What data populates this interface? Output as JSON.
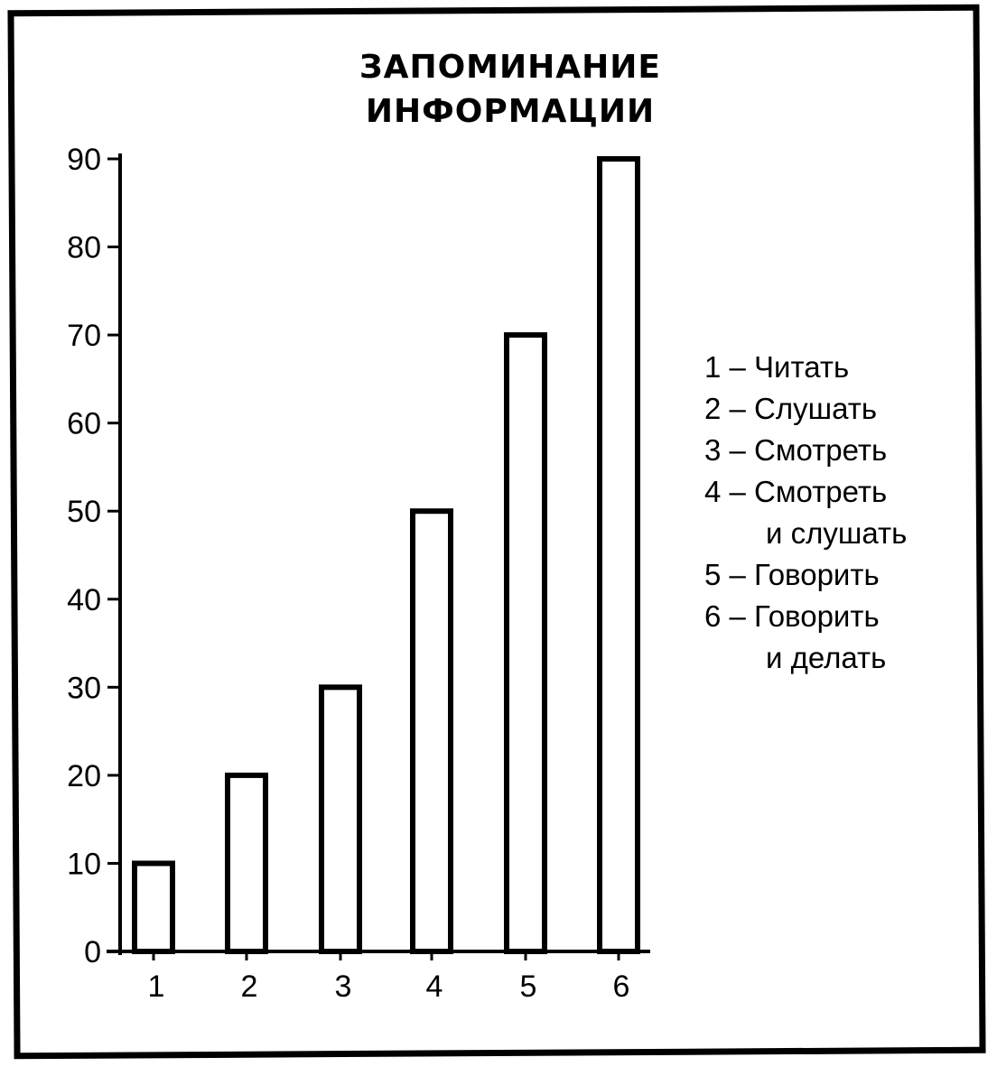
{
  "chart_data": {
    "type": "bar",
    "title": [
      "ЗАПОМИНАНИЕ",
      "ИНФОРМАЦИИ"
    ],
    "categories": [
      "1",
      "2",
      "3",
      "4",
      "5",
      "6"
    ],
    "values": [
      10,
      20,
      30,
      50,
      70,
      90
    ],
    "ylim": [
      0,
      90
    ],
    "yticks": [
      0,
      10,
      20,
      30,
      40,
      50,
      60,
      70,
      80,
      90
    ],
    "xlabel": "",
    "ylabel": "",
    "grid": false,
    "legend_position": "right",
    "legend": [
      [
        "1 – Читать"
      ],
      [
        "2 – Слушать"
      ],
      [
        "3 – Смотреть"
      ],
      [
        "4 – Смотреть",
        "и слушать"
      ],
      [
        "5 – Говорить"
      ],
      [
        "6 – Говорить",
        "и делать"
      ]
    ],
    "bar_fill": "#ffffff",
    "stroke_color": "#000000"
  }
}
